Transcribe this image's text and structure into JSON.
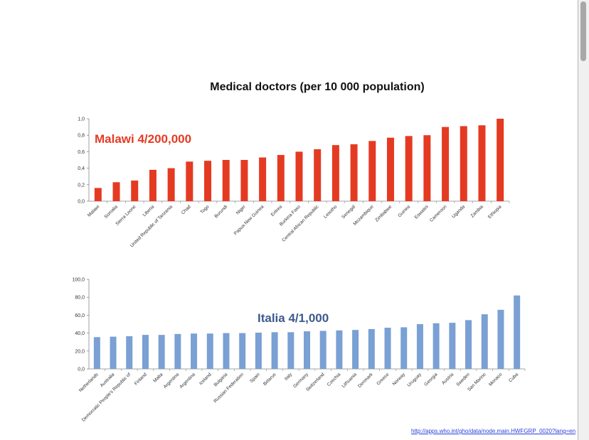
{
  "page": {
    "link": "http://apps.who.int/gho/data/node.main.HWFGRP_0020?lang=en"
  },
  "chart_data": [
    {
      "type": "bar",
      "title": "Medical doctors (per 10 000 population)",
      "annotation": "Malawi 4/200,000",
      "annotation_color": "#e53a22",
      "color": "#e53a22",
      "ylim": [
        0,
        1.0
      ],
      "yticks": [
        "0,0",
        "0,2",
        "0,4",
        "0,6",
        "0,8",
        "1,0"
      ],
      "categories": [
        "Malawi",
        "Somalia",
        "Sierra Leone",
        "Liberia",
        "United Republic of Tanzania",
        "Chad",
        "Togo",
        "Burundi",
        "Niger",
        "Papua New Guinea",
        "Eritrea",
        "Burkina Faso",
        "Central African Republic",
        "Lesotho",
        "Senegal",
        "Mozambique",
        "Zimbabwe",
        "Guinea",
        "Eswatini",
        "Cameroon",
        "Uganda",
        "Zambia",
        "Ethiopia"
      ],
      "values": [
        0.16,
        0.23,
        0.25,
        0.38,
        0.4,
        0.48,
        0.49,
        0.5,
        0.5,
        0.53,
        0.56,
        0.6,
        0.63,
        0.68,
        0.69,
        0.73,
        0.77,
        0.79,
        0.8,
        0.9,
        0.91,
        0.92,
        1.0
      ]
    },
    {
      "type": "bar",
      "title": "",
      "annotation": "Italia 4/1,000",
      "annotation_color": "#3d5a8c",
      "color": "#7aa0d4",
      "ylim": [
        0,
        100
      ],
      "yticks": [
        "0,0",
        "20,0",
        "40,0",
        "60,0",
        "80,0",
        "100,0"
      ],
      "categories": [
        "Netherlands",
        "Australia",
        "Democratic People's Republic of",
        "Finland",
        "Malta",
        "Argentina",
        "Argentina",
        "Iceland",
        "Bulgaria",
        "Russian Federation",
        "Spain",
        "Belarus",
        "Italy",
        "Germany",
        "Switzerland",
        "Czechia",
        "Lithuania",
        "Denmark",
        "Greece",
        "Norway",
        "Uruguay",
        "Georgia",
        "Austria",
        "Sweden",
        "San Marino",
        "Monaco",
        "Cuba"
      ],
      "values": [
        35.5,
        36.0,
        36.5,
        38.0,
        38.0,
        39.0,
        39.5,
        39.5,
        40.0,
        40.0,
        40.5,
        41.0,
        41.0,
        42.0,
        42.5,
        43.0,
        43.5,
        44.5,
        46.0,
        46.5,
        50.0,
        51.0,
        51.5,
        54.5,
        61.0,
        66.0,
        82.0
      ]
    }
  ]
}
